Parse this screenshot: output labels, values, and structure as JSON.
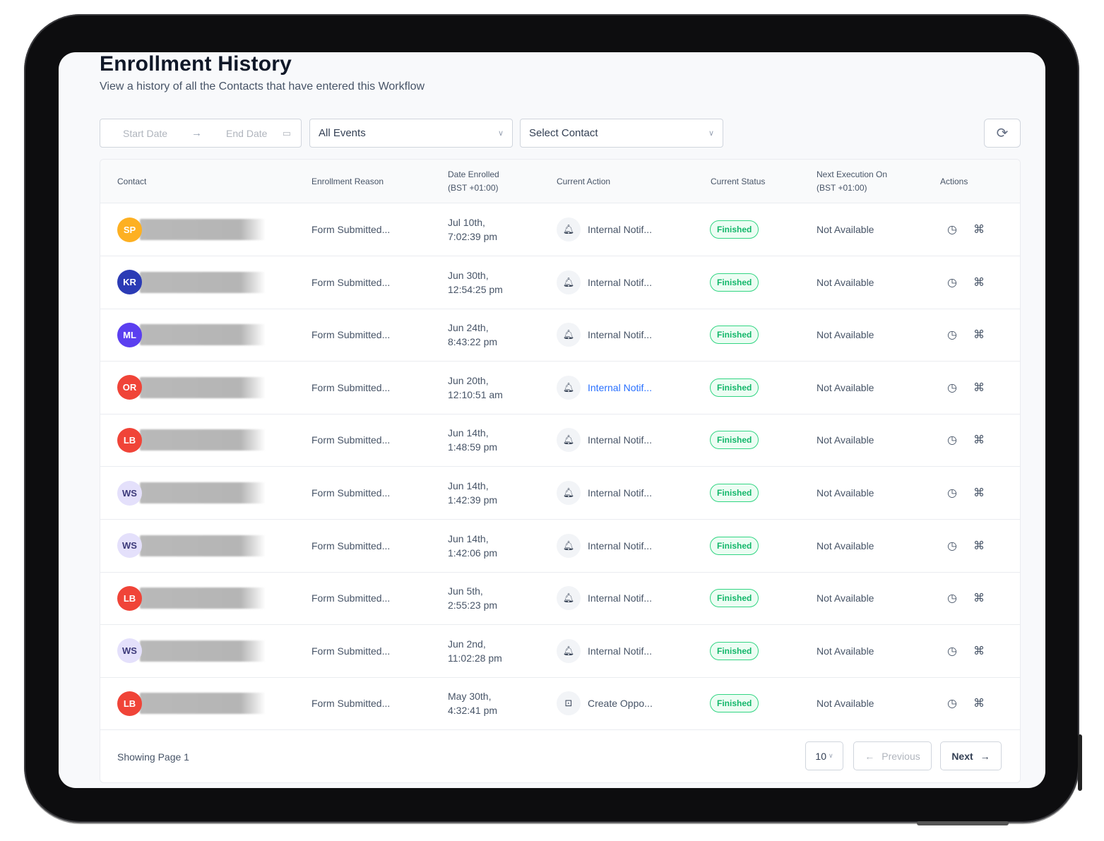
{
  "header": {
    "title": "Enrollment History",
    "subtitle": "View a history of all the Contacts that have entered this Workflow"
  },
  "filters": {
    "start_placeholder": "Start Date",
    "end_placeholder": "End Date",
    "events_value": "All Events",
    "contact_placeholder": "Select Contact"
  },
  "columns": {
    "contact": "Contact",
    "reason": "Enrollment Reason",
    "date_enrolled_1": "Date Enrolled",
    "date_enrolled_2": "(BST +01:00)",
    "current_action": "Current Action",
    "current_status": "Current Status",
    "next_exec_1": "Next Execution On",
    "next_exec_2": "(BST +01:00)",
    "actions": "Actions"
  },
  "rows": [
    {
      "initials": "SP",
      "avatar_color": "#fdb022",
      "reason": "Form Submitted...",
      "date_1": "Jul 10th,",
      "date_2": "7:02:39 pm",
      "action_icon": "bell-icon",
      "action": "Internal Notif...",
      "status": "Finished",
      "next": "Not Available"
    },
    {
      "initials": "KR",
      "avatar_color": "#2b3bb5",
      "reason": "Form Submitted...",
      "date_1": "Jun 30th,",
      "date_2": "12:54:25 pm",
      "action_icon": "bell-icon",
      "action": "Internal Notif...",
      "status": "Finished",
      "next": "Not Available"
    },
    {
      "initials": "ML",
      "avatar_color": "#5b3ff0",
      "reason": "Form Submitted...",
      "date_1": "Jun 24th,",
      "date_2": "8:43:22 pm",
      "action_icon": "bell-icon",
      "action": "Internal Notif...",
      "status": "Finished",
      "next": "Not Available"
    },
    {
      "initials": "OR",
      "avatar_color": "#f04438",
      "reason": "Form Submitted...",
      "date_1": "Jun 20th,",
      "date_2": "12:10:51 am",
      "action_icon": "bell-icon",
      "action": "Internal Notif...",
      "status": "Finished",
      "next": "Not Available"
    },
    {
      "initials": "LB",
      "avatar_color": "#f04438",
      "reason": "Form Submitted...",
      "date_1": "Jun 14th,",
      "date_2": "1:48:59 pm",
      "action_icon": "bell-icon",
      "action": "Internal Notif...",
      "status": "Finished",
      "next": "Not Available"
    },
    {
      "initials": "WS",
      "avatar_color": "#e4e0fb",
      "reason": "Form Submitted...",
      "date_1": "Jun 14th,",
      "date_2": "1:42:39 pm",
      "action_icon": "bell-icon",
      "action": "Internal Notif...",
      "status": "Finished",
      "next": "Not Available"
    },
    {
      "initials": "WS",
      "avatar_color": "#e4e0fb",
      "reason": "Form Submitted...",
      "date_1": "Jun 14th,",
      "date_2": "1:42:06 pm",
      "action_icon": "bell-icon",
      "action": "Internal Notif...",
      "status": "Finished",
      "next": "Not Available"
    },
    {
      "initials": "LB",
      "avatar_color": "#f04438",
      "reason": "Form Submitted...",
      "date_1": "Jun 5th,",
      "date_2": "2:55:23 pm",
      "action_icon": "bell-icon",
      "action": "Internal Notif...",
      "status": "Finished",
      "next": "Not Available"
    },
    {
      "initials": "WS",
      "avatar_color": "#e4e0fb",
      "reason": "Form Submitted...",
      "date_1": "Jun 2nd,",
      "date_2": "11:02:28 pm",
      "action_icon": "bell-icon",
      "action": "Internal Notif...",
      "status": "Finished",
      "next": "Not Available"
    },
    {
      "initials": "LB",
      "avatar_color": "#f04438",
      "reason": "Form Submitted...",
      "date_1": "May 30th,",
      "date_2": "4:32:41 pm",
      "action_icon": "opportunity-icon",
      "action": "Create Oppo...",
      "status": "Finished",
      "next": "Not Available"
    }
  ],
  "footer": {
    "showing": "Showing Page 1",
    "page_size": "10",
    "previous": "Previous",
    "next": "Next"
  },
  "colors": {
    "status_green": "#12b76a",
    "link_blue": "#2970ff"
  }
}
